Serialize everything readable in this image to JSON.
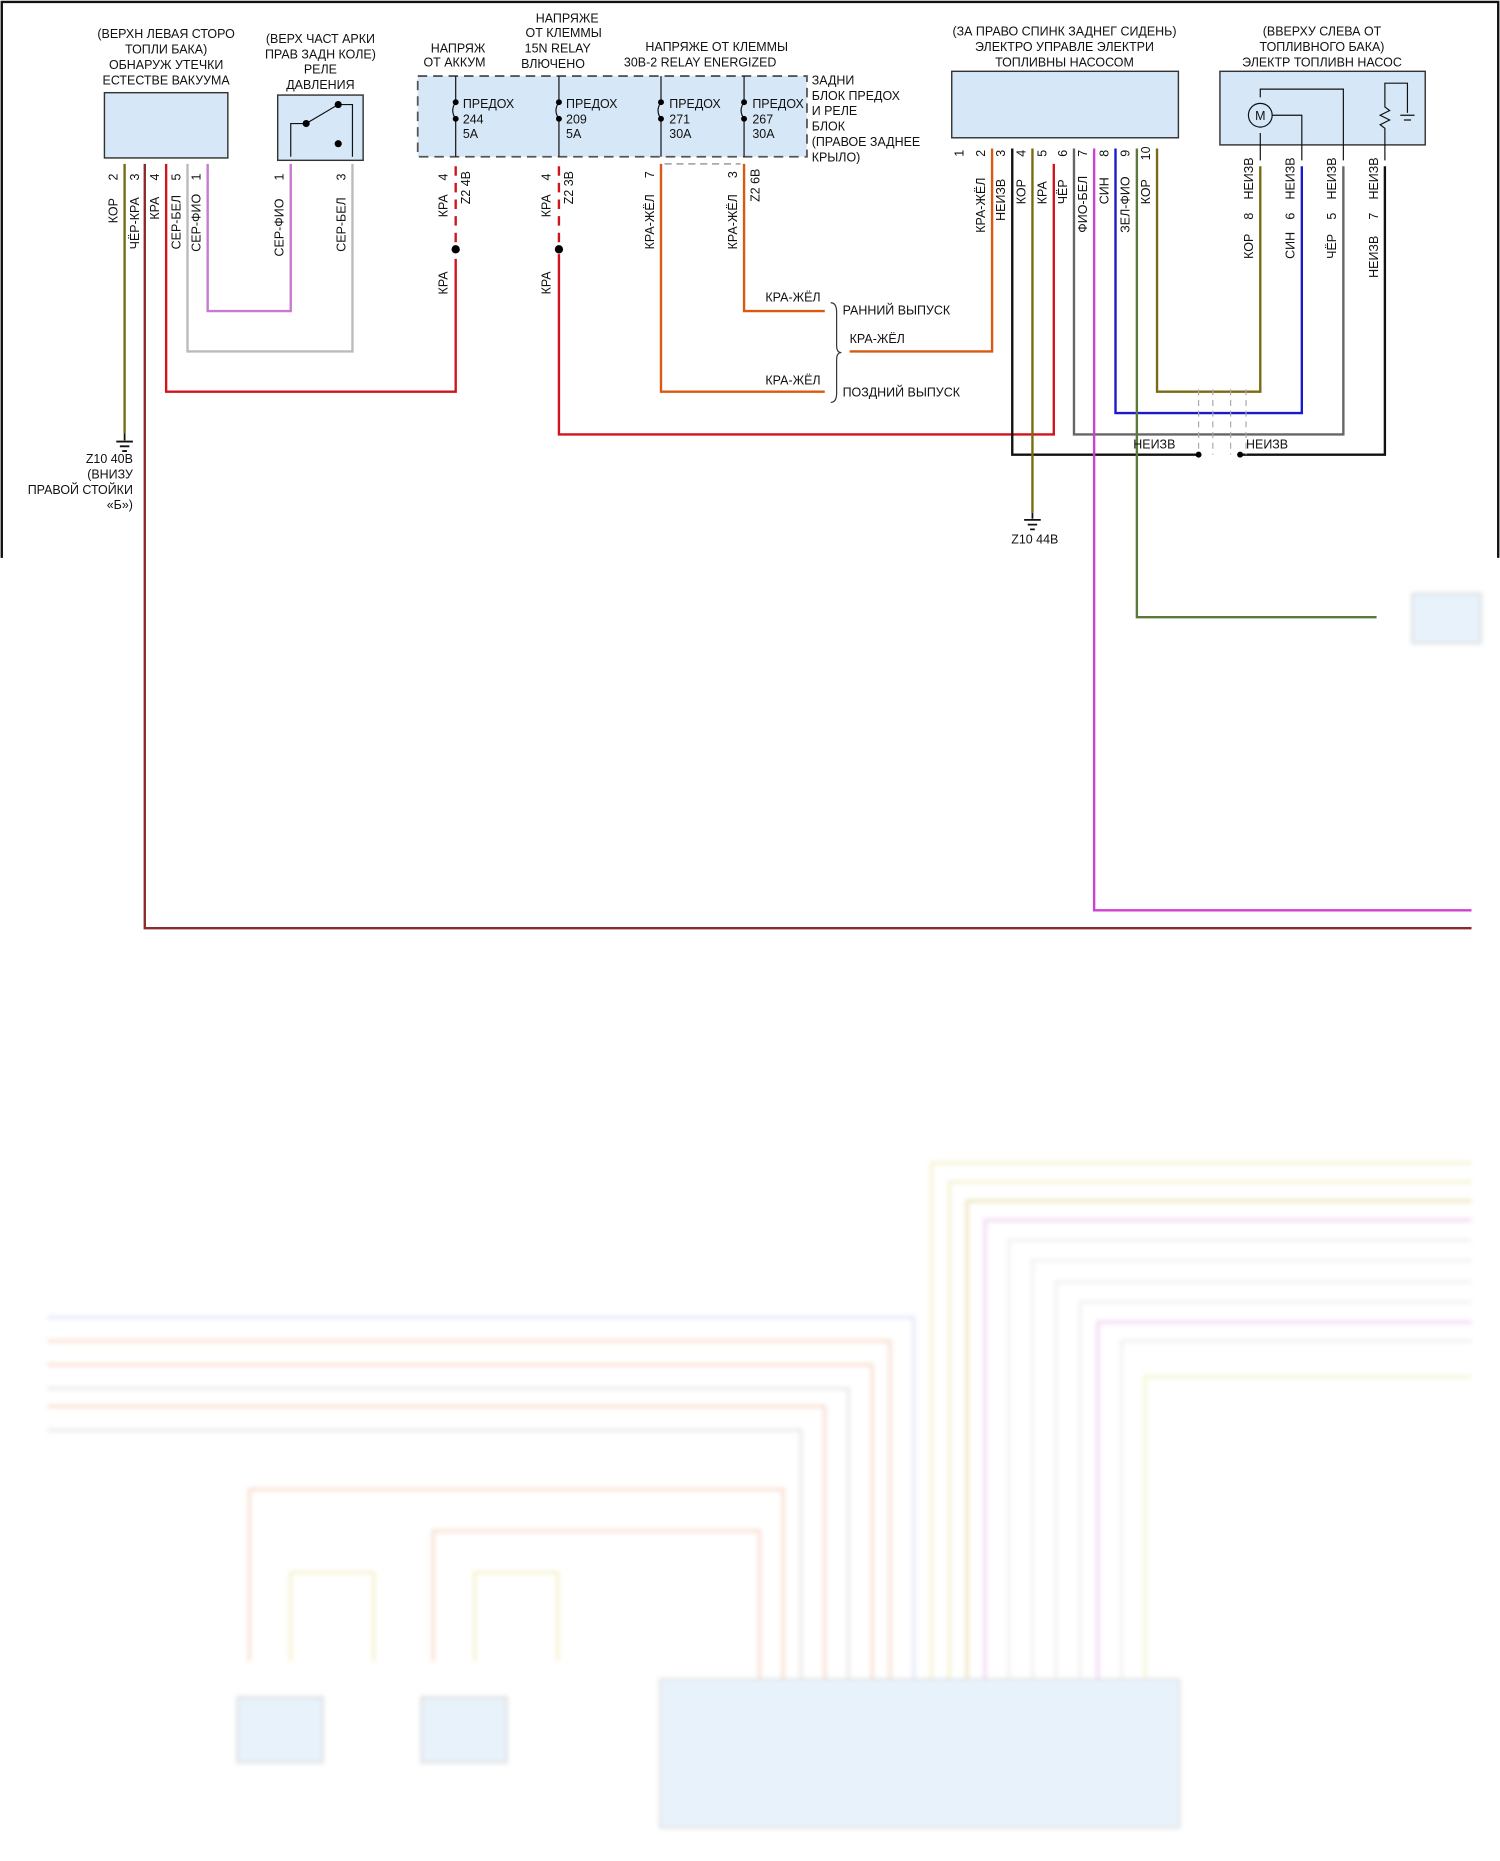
{
  "components": {
    "vacuum_leak": {
      "lines": [
        "(ВЕРХН ЛЕВАЯ СТОРО",
        "ТОПЛИ БАКА)",
        "ОБНАРУЖ УТЕЧКИ",
        "ЕСТЕСТВЕ ВАКУУМА"
      ],
      "pins": [
        {
          "num": "2",
          "color": "КОР"
        },
        {
          "num": "3",
          "color": "ЧЁР-КРА"
        },
        {
          "num": "4",
          "color": "КРА"
        },
        {
          "num": "5",
          "color": "СЕР-БЕЛ"
        },
        {
          "num": "1",
          "color": "СЕР-ФИО"
        }
      ]
    },
    "pressure_relay": {
      "lines": [
        "(ВЕРХ ЧАСТ АРКИ",
        "ПРАВ ЗАДН КОЛЕ)",
        "РЕЛЕ",
        "ДАВЛЕНИЯ"
      ],
      "pins": [
        {
          "num": "1",
          "color": "СЕР-ФИО"
        },
        {
          "num": "3",
          "color": "СЕР-БЕЛ"
        }
      ]
    },
    "fuse_block": {
      "headers": {
        "battery": [
          "НАПРЯЖ",
          "ОТ АККУМ"
        ],
        "relay15n": [
          "НАПРЯЖЕ",
          "ОТ КЛЕММЫ",
          "15N RELAY",
          "ВЛЮЧЕНО"
        ],
        "relay30b": [
          "НАПРЯЖЕ ОТ КЛЕММЫ",
          "30B-2 RELAY ENERGIZED"
        ]
      },
      "side_label": [
        "ЗАДНИ",
        "БЛОК ПРЕДОХ",
        "И РЕЛЕ",
        "БЛОК",
        "(ПРАВОЕ ЗАДНЕЕ",
        "КРЫЛО)"
      ],
      "fuses": [
        {
          "label": "ПРЕДОХ",
          "num": "244",
          "amp": "5A",
          "pin": "4",
          "conn": "Z2 4B",
          "color": "КРА",
          "color2": "КРА"
        },
        {
          "label": "ПРЕДОХ",
          "num": "209",
          "amp": "5A",
          "pin": "4",
          "conn": "Z2 3B",
          "color": "КРА",
          "color2": "КРА"
        },
        {
          "label": "ПРЕДОХ",
          "num": "271",
          "amp": "30A",
          "pin": "7",
          "conn": "",
          "color": "КРА-ЖЁЛ"
        },
        {
          "label": "ПРЕДОХ",
          "num": "267",
          "amp": "30A",
          "pin": "3",
          "conn": "Z2 6B",
          "color": "КРА-ЖЁЛ"
        }
      ]
    },
    "pump_control": {
      "lines": [
        "(ЗА ПРАВО СПИНК ЗАДНЕГ СИДЕНЬ)",
        "ЭЛЕКТРО УПРАВЛЕ ЭЛЕКТРИ",
        "ТОПЛИВНЫ НАСОСОМ"
      ],
      "pins": [
        {
          "num": "1",
          "color": ""
        },
        {
          "num": "2",
          "color": "КРА-ЖЁЛ"
        },
        {
          "num": "3",
          "color": "НЕИЗВ"
        },
        {
          "num": "4",
          "color": "КОР"
        },
        {
          "num": "5",
          "color": "КРА"
        },
        {
          "num": "6",
          "color": "ЧЁР"
        },
        {
          "num": "7",
          "color": "ФИО-БЕЛ"
        },
        {
          "num": "8",
          "color": "СИН"
        },
        {
          "num": "9",
          "color": "ЗЕЛ-ФИО"
        },
        {
          "num": "10",
          "color": "КОР"
        }
      ]
    },
    "fuel_pump": {
      "lines": [
        "(ВВЕРХУ СЛЕВА ОТ",
        "ТОПЛИВНОГО БАКА)",
        "ЭЛЕКТР ТОПЛИВН НАСОС"
      ],
      "motor": "M",
      "pins": [
        {
          "num": "8",
          "top": "НЕИЗВ",
          "color": "КОР"
        },
        {
          "num": "6",
          "top": "НЕИЗВ",
          "color": "СИН"
        },
        {
          "num": "5",
          "top": "НЕИЗВ",
          "color": "ЧЁР"
        },
        {
          "num": "7",
          "top": "НЕИЗВ",
          "color": "НЕИЗВ"
        }
      ]
    }
  },
  "release": {
    "early_wire": "КРА-ЖЁЛ",
    "early": "РАННИЙ ВЫПУСК",
    "mid_wire": "КРА-ЖЁЛ",
    "late_wire": "КРА-ЖЁЛ",
    "late": "ПОЗДНИЙ ВЫПУСК"
  },
  "shield": {
    "left": "НЕИЗВ",
    "right": "НЕИЗВ"
  },
  "grounds": {
    "g1": [
      "Z10 40B",
      "(ВНИЗУ",
      "ПРАВОЙ СТОЙКИ",
      "«Б»)"
    ],
    "g2": "Z10 44B"
  },
  "colors": {
    "red": "#d0141c",
    "brown": "#7a6a10",
    "darkred": "#8b2a2a",
    "gray": "#b8b8b8",
    "violet": "#c77ad0",
    "orange": "#d85a10",
    "blue": "#1a1acc",
    "green": "#5a7a3a",
    "magenta": "#d040d0",
    "box": "#d6e8f8"
  }
}
